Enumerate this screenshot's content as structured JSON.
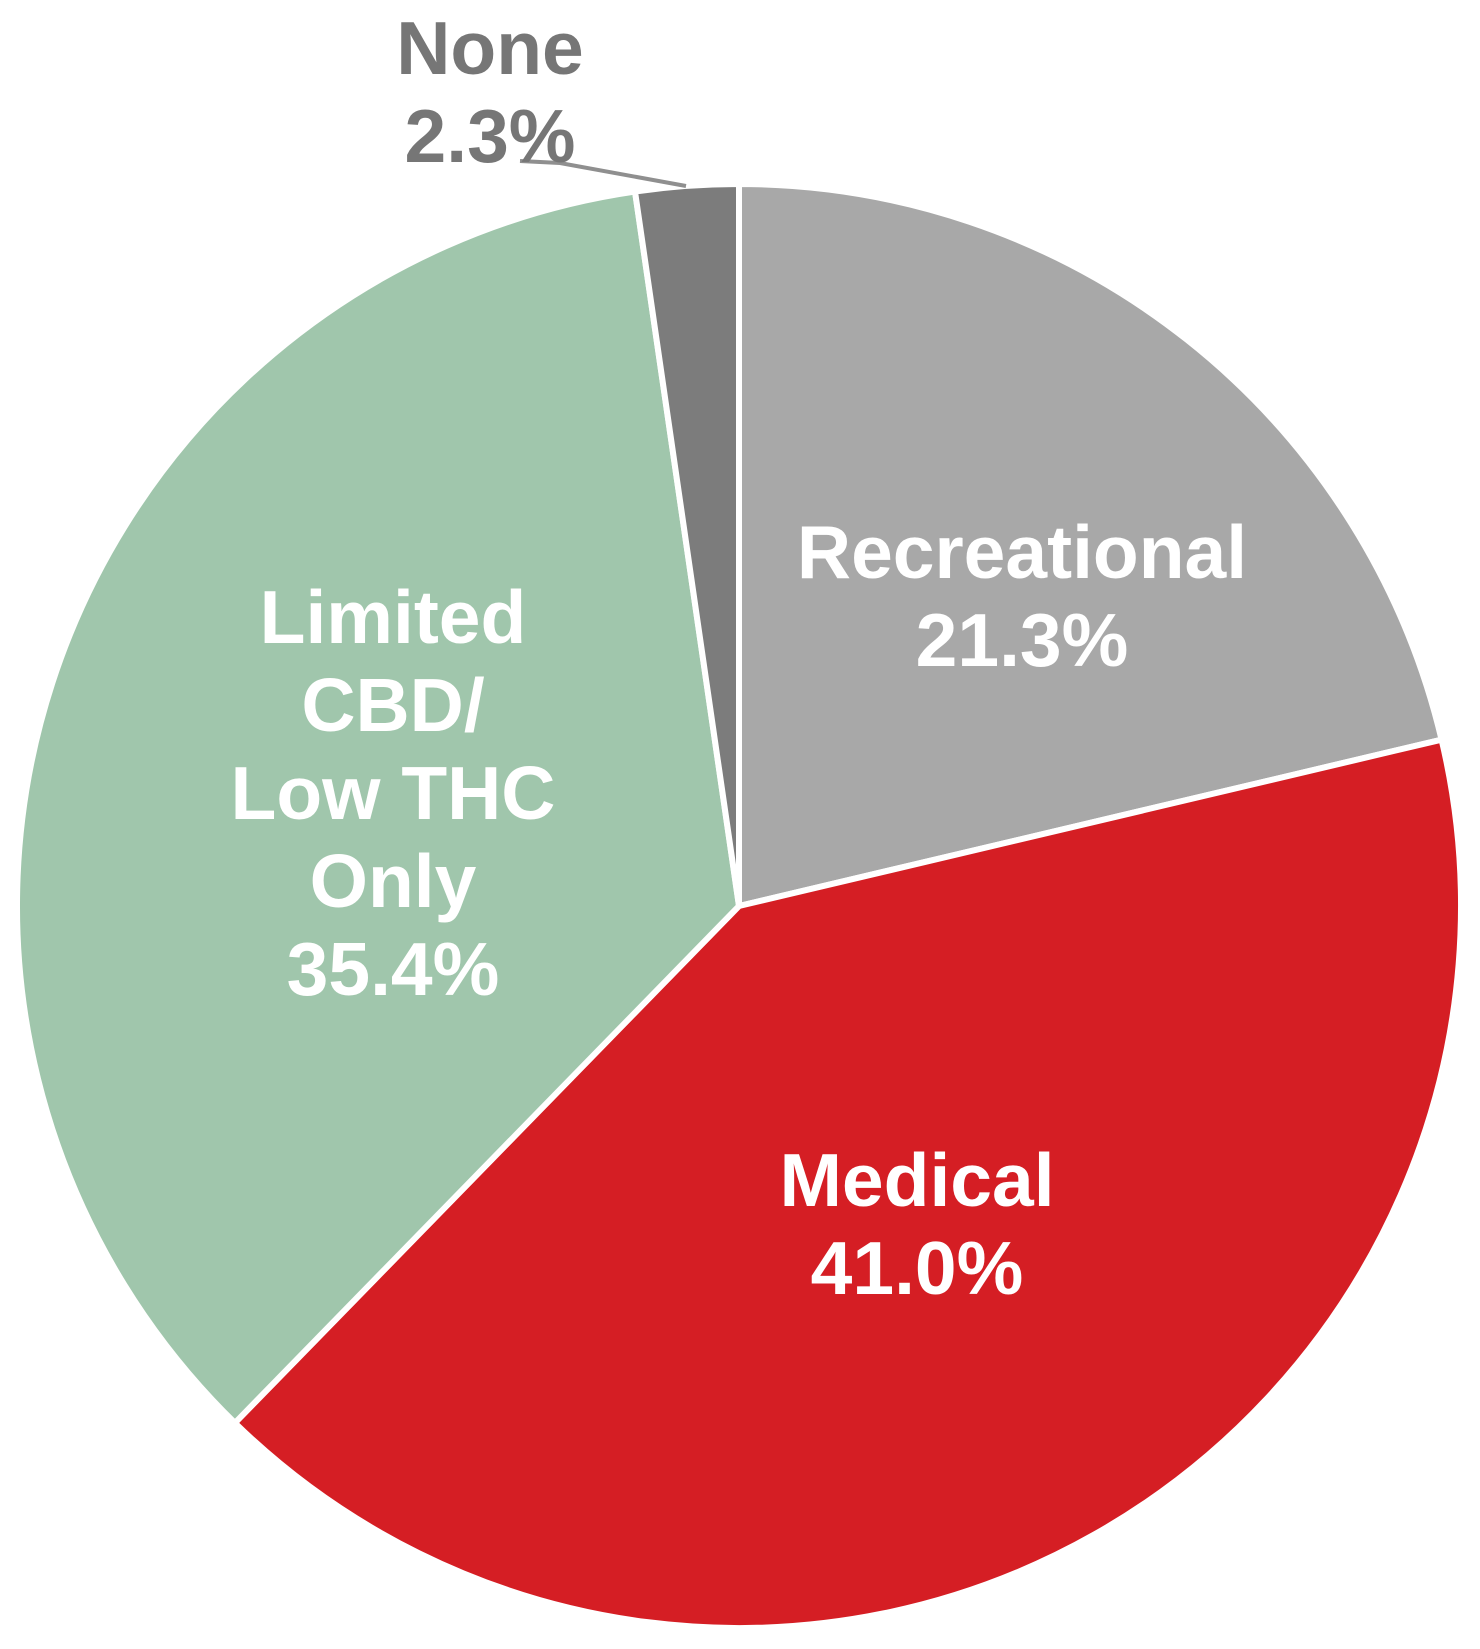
{
  "chart_data": {
    "type": "pie",
    "title": "",
    "units": "%",
    "direction": "clockwise",
    "start_angle_deg": 0,
    "legend_position": "none",
    "background_color": "#ffffff",
    "slice_border_color": "#ffffff",
    "categories": [
      "Recreational",
      "Medical",
      "Limited CBD/Low THC Only",
      "None"
    ],
    "values": [
      21.3,
      41.0,
      35.4,
      2.3
    ],
    "slices": [
      {
        "id": "recreational",
        "label": "Recreational",
        "value": 21.3,
        "pct_label": "21.3%",
        "label_lines": [
          "Recreational"
        ],
        "color": "#a8a8a8",
        "text_color": "#ffffff",
        "label_placement": "inside"
      },
      {
        "id": "medical",
        "label": "Medical",
        "value": 41.0,
        "pct_label": "41.0%",
        "label_lines": [
          "Medical"
        ],
        "color": "#d51e24",
        "text_color": "#ffffff",
        "label_placement": "inside"
      },
      {
        "id": "limited-cbd-low-thc-only",
        "label": "Limited CBD/Low THC Only",
        "value": 35.4,
        "pct_label": "35.4%",
        "label_lines": [
          "Limited",
          "CBD/",
          "Low THC",
          "Only"
        ],
        "color": "#a0c6ac",
        "text_color": "#ffffff",
        "label_placement": "inside"
      },
      {
        "id": "none",
        "label": "None",
        "value": 2.3,
        "pct_label": "2.3%",
        "label_lines": [
          "None"
        ],
        "color": "#7c7c7c",
        "text_color": "#767676",
        "label_placement": "outside-callout"
      }
    ],
    "callout": {
      "for_slice": "None",
      "leader_line_color": "#8f8f8f"
    }
  }
}
